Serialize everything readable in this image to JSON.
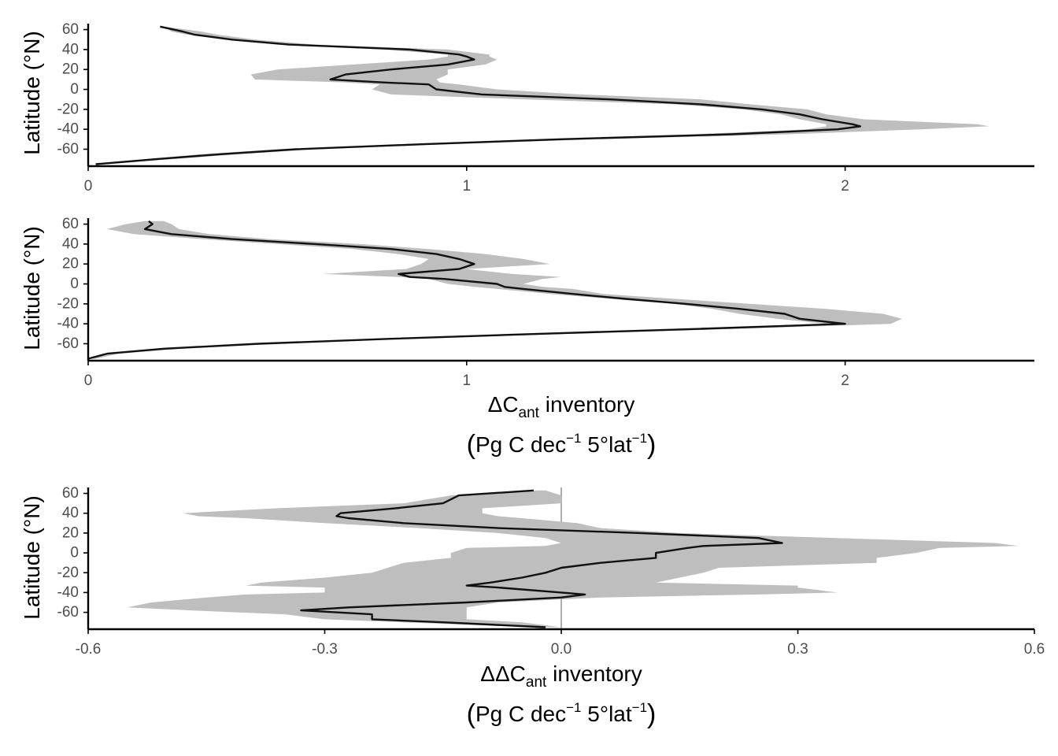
{
  "chart_data": [
    {
      "type": "line",
      "x_axis": {
        "lim": [
          0,
          2.5
        ],
        "ticks": [
          "0",
          "1",
          "2"
        ]
      },
      "y_axis": {
        "label": "Latitude (°N)",
        "lim": [
          -77,
          66
        ],
        "ticks": [
          "60",
          "40",
          "20",
          "0",
          "-20",
          "-40",
          "-60"
        ]
      },
      "series": [
        {
          "lat": [
            63,
            58,
            55,
            50,
            45,
            40,
            35,
            33,
            30,
            25,
            20,
            15,
            10,
            7,
            5,
            0,
            -5,
            -10,
            -15,
            -20,
            -25,
            -30,
            -35,
            -37,
            -40,
            -45,
            -50,
            -55,
            -60,
            -65,
            -70,
            -75
          ],
          "value": [
            0.19,
            0.25,
            0.28,
            0.38,
            0.53,
            0.85,
            0.98,
            1.0,
            1.02,
            0.95,
            0.8,
            0.68,
            0.64,
            0.78,
            0.9,
            0.92,
            1.04,
            1.38,
            1.62,
            1.78,
            1.88,
            1.94,
            2.02,
            2.04,
            1.98,
            1.7,
            1.25,
            0.88,
            0.55,
            0.35,
            0.18,
            0.02
          ],
          "lower": [
            0.2,
            0.22,
            0.26,
            0.38,
            0.5,
            0.78,
            0.95,
            0.95,
            0.9,
            0.7,
            0.5,
            0.43,
            0.44,
            0.68,
            0.77,
            0.75,
            0.8,
            1.16,
            1.55,
            1.73,
            1.83,
            1.88,
            1.95,
            1.95,
            1.9,
            1.6,
            1.2,
            0.82,
            0.5,
            0.3,
            0.15,
            0.02
          ],
          "upper": [
            0.2,
            0.3,
            0.34,
            0.44,
            0.6,
            0.95,
            1.06,
            1.06,
            1.08,
            1.05,
            0.95,
            0.95,
            0.92,
            0.93,
            0.98,
            1.08,
            1.3,
            1.62,
            1.75,
            1.9,
            1.95,
            2.05,
            2.35,
            2.38,
            2.2,
            1.85,
            1.35,
            0.95,
            0.6,
            0.4,
            0.22,
            0.05
          ]
        }
      ]
    },
    {
      "type": "line",
      "x_axis": {
        "lim": [
          0,
          2.5
        ],
        "ticks": [
          "0",
          "1",
          "2"
        ],
        "label_main": "ΔC",
        "label_sub": "ant",
        "label_rest": " inventory",
        "unit_line": {
          "open": "(",
          "pg": "Pg C dec",
          "exp1": "−1",
          "lat": " 5°lat",
          "exp2": "−1",
          "close": ")"
        }
      },
      "y_axis": {
        "label": "Latitude (°N)",
        "lim": [
          -77,
          66
        ],
        "ticks": [
          "60",
          "40",
          "20",
          "0",
          "-20",
          "-40",
          "-60"
        ]
      },
      "series": [
        {
          "lat": [
            63,
            60,
            55,
            50,
            45,
            40,
            35,
            30,
            25,
            20,
            15,
            10,
            7,
            5,
            0,
            -3,
            -5,
            -10,
            -15,
            -20,
            -25,
            -30,
            -35,
            -40,
            -45,
            -50,
            -55,
            -60,
            -65,
            -70,
            -75
          ],
          "value": [
            0.16,
            0.17,
            0.15,
            0.22,
            0.38,
            0.6,
            0.8,
            0.92,
            0.98,
            1.02,
            0.98,
            0.82,
            0.85,
            0.94,
            1.08,
            1.1,
            1.15,
            1.28,
            1.42,
            1.58,
            1.72,
            1.84,
            1.88,
            2.0,
            1.62,
            1.2,
            0.8,
            0.45,
            0.2,
            0.05,
            0.0
          ],
          "lower": [
            0.15,
            0.1,
            0.05,
            0.12,
            0.3,
            0.5,
            0.7,
            0.82,
            0.9,
            0.88,
            0.84,
            0.62,
            0.82,
            0.9,
            0.95,
            1.02,
            1.08,
            1.22,
            1.38,
            1.55,
            1.65,
            1.72,
            1.82,
            1.95,
            1.55,
            1.12,
            0.75,
            0.4,
            0.18,
            0.04,
            0.0
          ],
          "upper": [
            0.2,
            0.22,
            0.24,
            0.32,
            0.48,
            0.72,
            0.9,
            1.05,
            1.15,
            1.22,
            1.0,
            1.12,
            1.25,
            1.2,
            1.15,
            1.2,
            1.28,
            1.36,
            1.55,
            1.75,
            1.95,
            2.1,
            2.15,
            2.12,
            1.72,
            1.28,
            0.85,
            0.5,
            0.25,
            0.08,
            0.02
          ]
        }
      ]
    },
    {
      "type": "line",
      "x_axis": {
        "lim": [
          -0.6,
          0.6
        ],
        "ticks": [
          "-0.6",
          "-0.3",
          "0.0",
          "0.3",
          "0.6"
        ],
        "label_main": "ΔΔC",
        "label_sub": "ant",
        "label_rest": " inventory",
        "unit_line": {
          "open": "(",
          "pg": "Pg C dec",
          "exp1": "−1",
          "lat": " 5°lat",
          "exp2": "−1",
          "close": ")"
        }
      },
      "y_axis": {
        "label": "Latitude (°N)",
        "lim": [
          -77,
          66
        ],
        "ticks": [
          "60",
          "40",
          "20",
          "0",
          "-20",
          "-40",
          "-60"
        ]
      },
      "series": [
        {
          "lat": [
            63,
            58,
            50,
            45,
            40,
            37,
            35,
            30,
            25,
            20,
            15,
            10,
            7,
            5,
            0,
            -5,
            -10,
            -15,
            -20,
            -25,
            -30,
            -33,
            -35,
            -40,
            -42,
            -45,
            -50,
            -55,
            -58,
            -62,
            -67,
            -70,
            -75
          ],
          "value": [
            -0.035,
            -0.13,
            -0.15,
            -0.21,
            -0.28,
            -0.285,
            -0.27,
            -0.2,
            -0.08,
            0.1,
            0.25,
            0.28,
            0.18,
            0.16,
            0.12,
            0.12,
            0.05,
            0.0,
            -0.02,
            -0.05,
            -0.09,
            -0.12,
            -0.08,
            0.0,
            0.03,
            0.0,
            -0.12,
            -0.27,
            -0.33,
            -0.24,
            -0.24,
            -0.15,
            -0.02
          ],
          "lower": [
            -0.03,
            -0.14,
            -0.2,
            -0.36,
            -0.48,
            -0.46,
            -0.4,
            -0.3,
            -0.18,
            -0.08,
            -0.02,
            0.0,
            -0.02,
            -0.12,
            -0.14,
            -0.14,
            -0.2,
            -0.22,
            -0.24,
            -0.3,
            -0.38,
            -0.4,
            -0.3,
            -0.3,
            -0.4,
            -0.45,
            -0.52,
            -0.55,
            -0.47,
            -0.35,
            -0.3,
            -0.2,
            -0.04
          ],
          "upper": [
            -0.02,
            0.0,
            0.0,
            -0.1,
            -0.1,
            -0.08,
            -0.05,
            0.02,
            0.05,
            0.15,
            0.35,
            0.55,
            0.58,
            0.48,
            0.45,
            0.4,
            0.4,
            0.2,
            0.18,
            0.15,
            0.12,
            0.3,
            0.3,
            0.35,
            0.25,
            0.05,
            -0.08,
            -0.12,
            -0.12,
            -0.12,
            -0.12,
            -0.05,
            0.0
          ]
        }
      ]
    }
  ]
}
